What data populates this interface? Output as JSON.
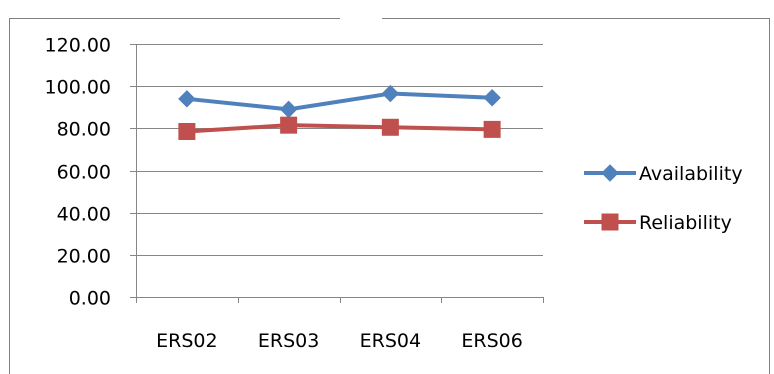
{
  "chart_data": {
    "type": "line",
    "title": "",
    "xlabel": "",
    "ylabel": "",
    "categories": [
      "ERS02",
      "ERS03",
      "ERS04",
      "ERS06"
    ],
    "ylim": [
      0,
      120
    ],
    "ytick_values": [
      0,
      20,
      40,
      60,
      80,
      100,
      120
    ],
    "ytick_labels": [
      "0.00",
      "20.00",
      "40.00",
      "60.00",
      "80.00",
      "100.00",
      "120.00"
    ],
    "grid": "horizontal",
    "legend_position": "right",
    "series": [
      {
        "name": "Availability",
        "values": [
          94.0,
          89.0,
          96.5,
          94.5
        ],
        "color": "#4F81BD",
        "marker": "diamond"
      },
      {
        "name": "Reliability",
        "values": [
          78.5,
          81.5,
          80.5,
          79.5
        ],
        "color": "#C0504D",
        "marker": "square"
      }
    ]
  }
}
